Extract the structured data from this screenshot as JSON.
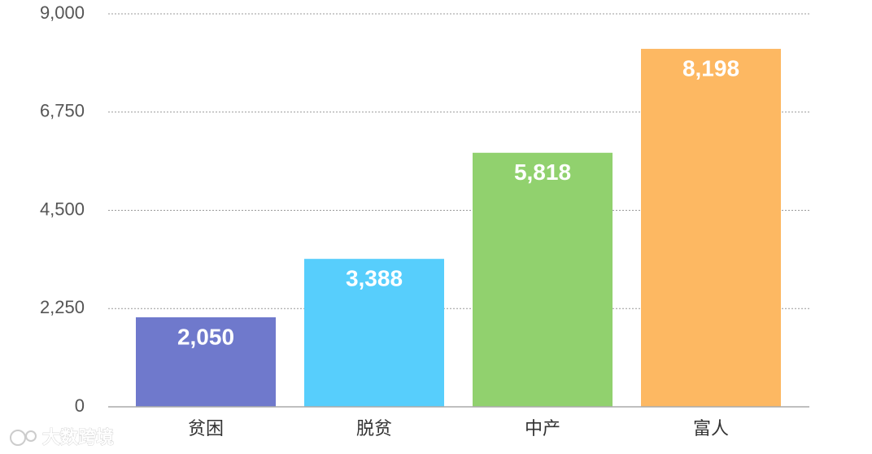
{
  "chart_data": {
    "type": "bar",
    "categories": [
      "贫困",
      "脱贫",
      "中产",
      "富人"
    ],
    "values": [
      2050,
      3388,
      5818,
      8198
    ],
    "value_labels": [
      "2,050",
      "3,388",
      "5,818",
      "8,198"
    ],
    "colors": [
      "#6f79cc",
      "#57cefc",
      "#91d16e",
      "#fdb862"
    ],
    "ylim": [
      0,
      9000
    ],
    "yticks": [
      0,
      {
        "value": 2250,
        "label": "2,250"
      },
      {
        "value": 4500,
        "label": "4,500"
      },
      {
        "value": 6750,
        "label": "6,750"
      },
      {
        "value": 9000,
        "label": "9,000"
      }
    ],
    "grid": true
  },
  "watermark": "大数跨境"
}
